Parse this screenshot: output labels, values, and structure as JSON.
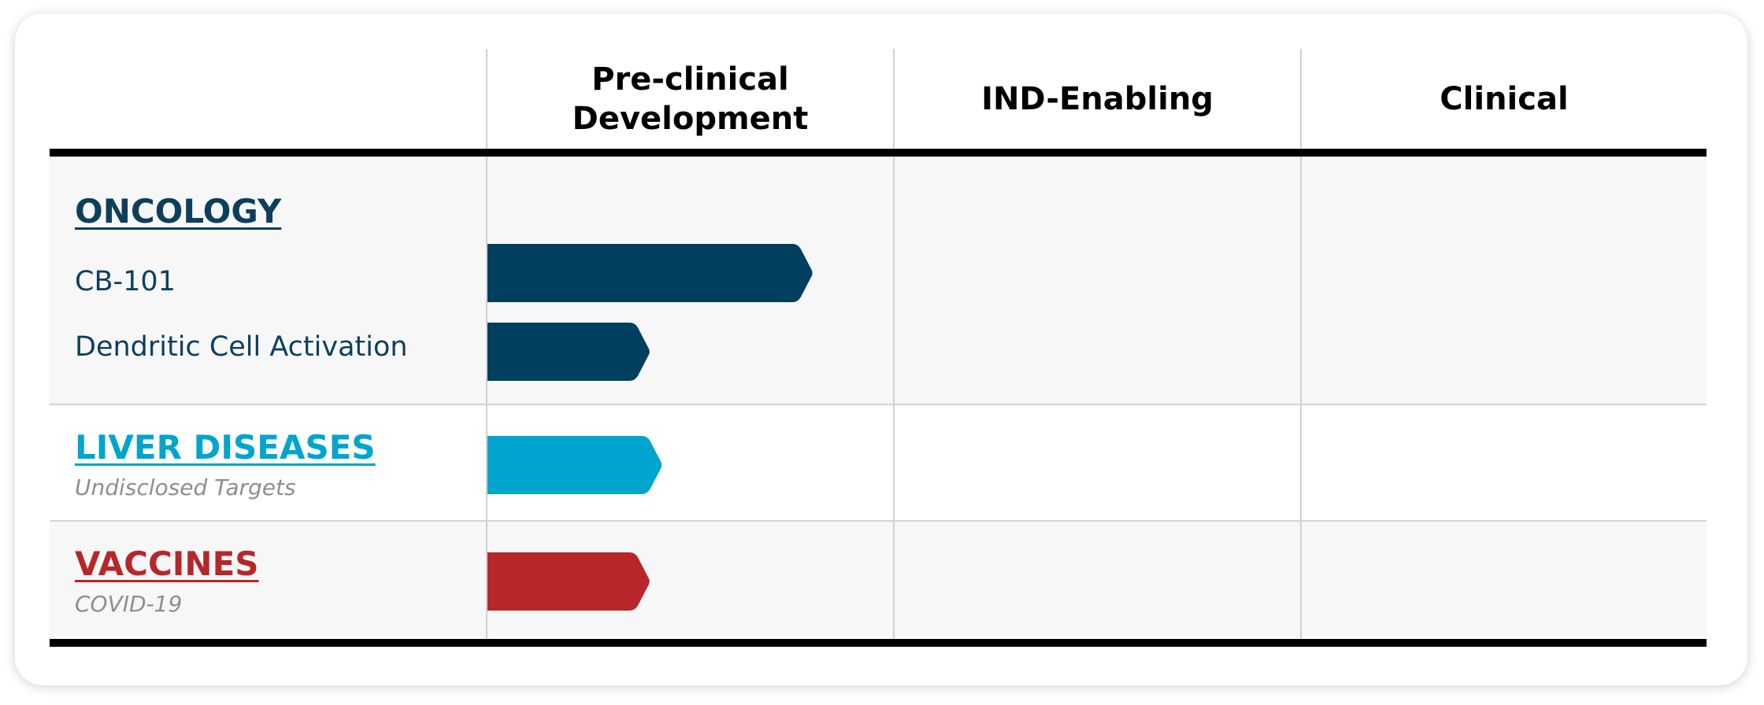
{
  "chart_data": {
    "type": "bar",
    "title": "",
    "stages": [
      "Pre-clinical Development",
      "IND-Enabling",
      "Clinical"
    ],
    "header_lines": [
      [
        "Pre-clinical",
        "Development"
      ],
      [
        "IND-Enabling"
      ],
      [
        "Clinical"
      ]
    ],
    "categories": [
      {
        "name": "ONCOLOGY",
        "color": "#0d3f5d",
        "items": [
          "CB-101",
          "Dendritic Cell Activation"
        ]
      },
      {
        "name": "LIVER DISEASES",
        "color": "#00a5cd",
        "subtitle": "Undisclosed Targets"
      },
      {
        "name": "VACCINES",
        "color": "#b7272a",
        "subtitle": "COVID-19"
      }
    ],
    "programs": [
      {
        "label": "CB-101",
        "progress_stages": 0.8,
        "color": "#003f5e"
      },
      {
        "label": "Dendritic Cell Activation",
        "progress_stages": 0.4,
        "color": "#003f5e"
      },
      {
        "label": "Undisclosed Targets",
        "progress_stages": 0.43,
        "color": "#00a5cd"
      },
      {
        "label": "COVID-19",
        "progress_stages": 0.4,
        "color": "#b7272a"
      }
    ],
    "xlim": [
      0,
      3
    ],
    "grid": true
  }
}
